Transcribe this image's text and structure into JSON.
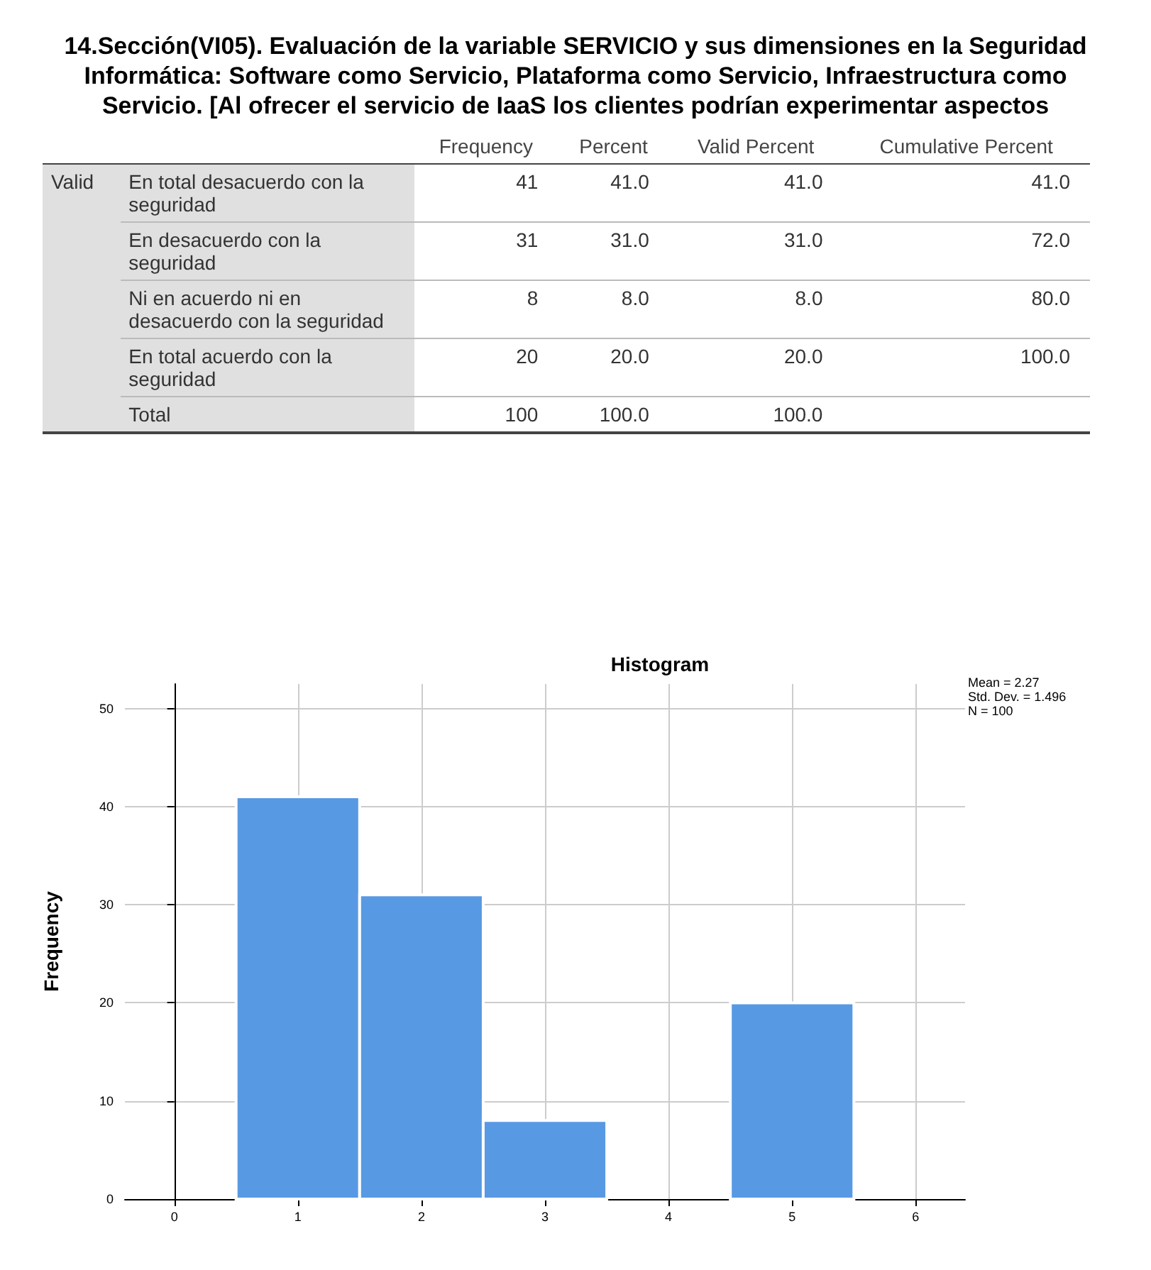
{
  "chart_data": [
    {
      "type": "other",
      "title": "14.Sección(VI05). Evaluación de la variable SERVICIO y sus dimensiones en la Seguridad Informática: Software como Servicio, Plataforma como Servicio, Infraestructura como Servicio. [Al ofrecer el servicio de IaaS los clientes podrían experimentar aspectos",
      "annotations": [
        "Frequency",
        "Percent",
        "Valid Percent",
        "Cumulative Percent",
        "Valid",
        "En total desacuerdo con la seguridad",
        "41",
        "41.0",
        "41.0",
        "41.0",
        "En desacuerdo con la seguridad",
        "31",
        "31.0",
        "31.0",
        "72.0",
        "Ni en acuerdo ni en desacuerdo con la seguridad",
        "8",
        "8.0",
        "8.0",
        "80.0",
        "En total acuerdo con la seguridad",
        "20",
        "20.0",
        "20.0",
        "100.0",
        "Total",
        "100",
        "100.0",
        "100.0"
      ]
    },
    {
      "type": "histogram",
      "title": "Histogram",
      "ylabel": "Frequency",
      "color": "#5899e3",
      "bins": [
        0.5,
        1.5,
        2.5,
        3.5,
        4.5,
        5.5
      ],
      "values": [
        41,
        31,
        8,
        0,
        20
      ],
      "xlim": [
        -0.4,
        6.4
      ],
      "xticks": [
        0,
        1,
        2,
        3,
        4,
        5,
        6
      ],
      "ylim": [
        0,
        52.5
      ],
      "yticks": [
        0,
        10,
        20,
        30,
        40,
        50
      ],
      "grid": true,
      "annotations": [
        "Mean = 2.27",
        "Std. Dev. = 1.496",
        "N = 100"
      ]
    }
  ]
}
